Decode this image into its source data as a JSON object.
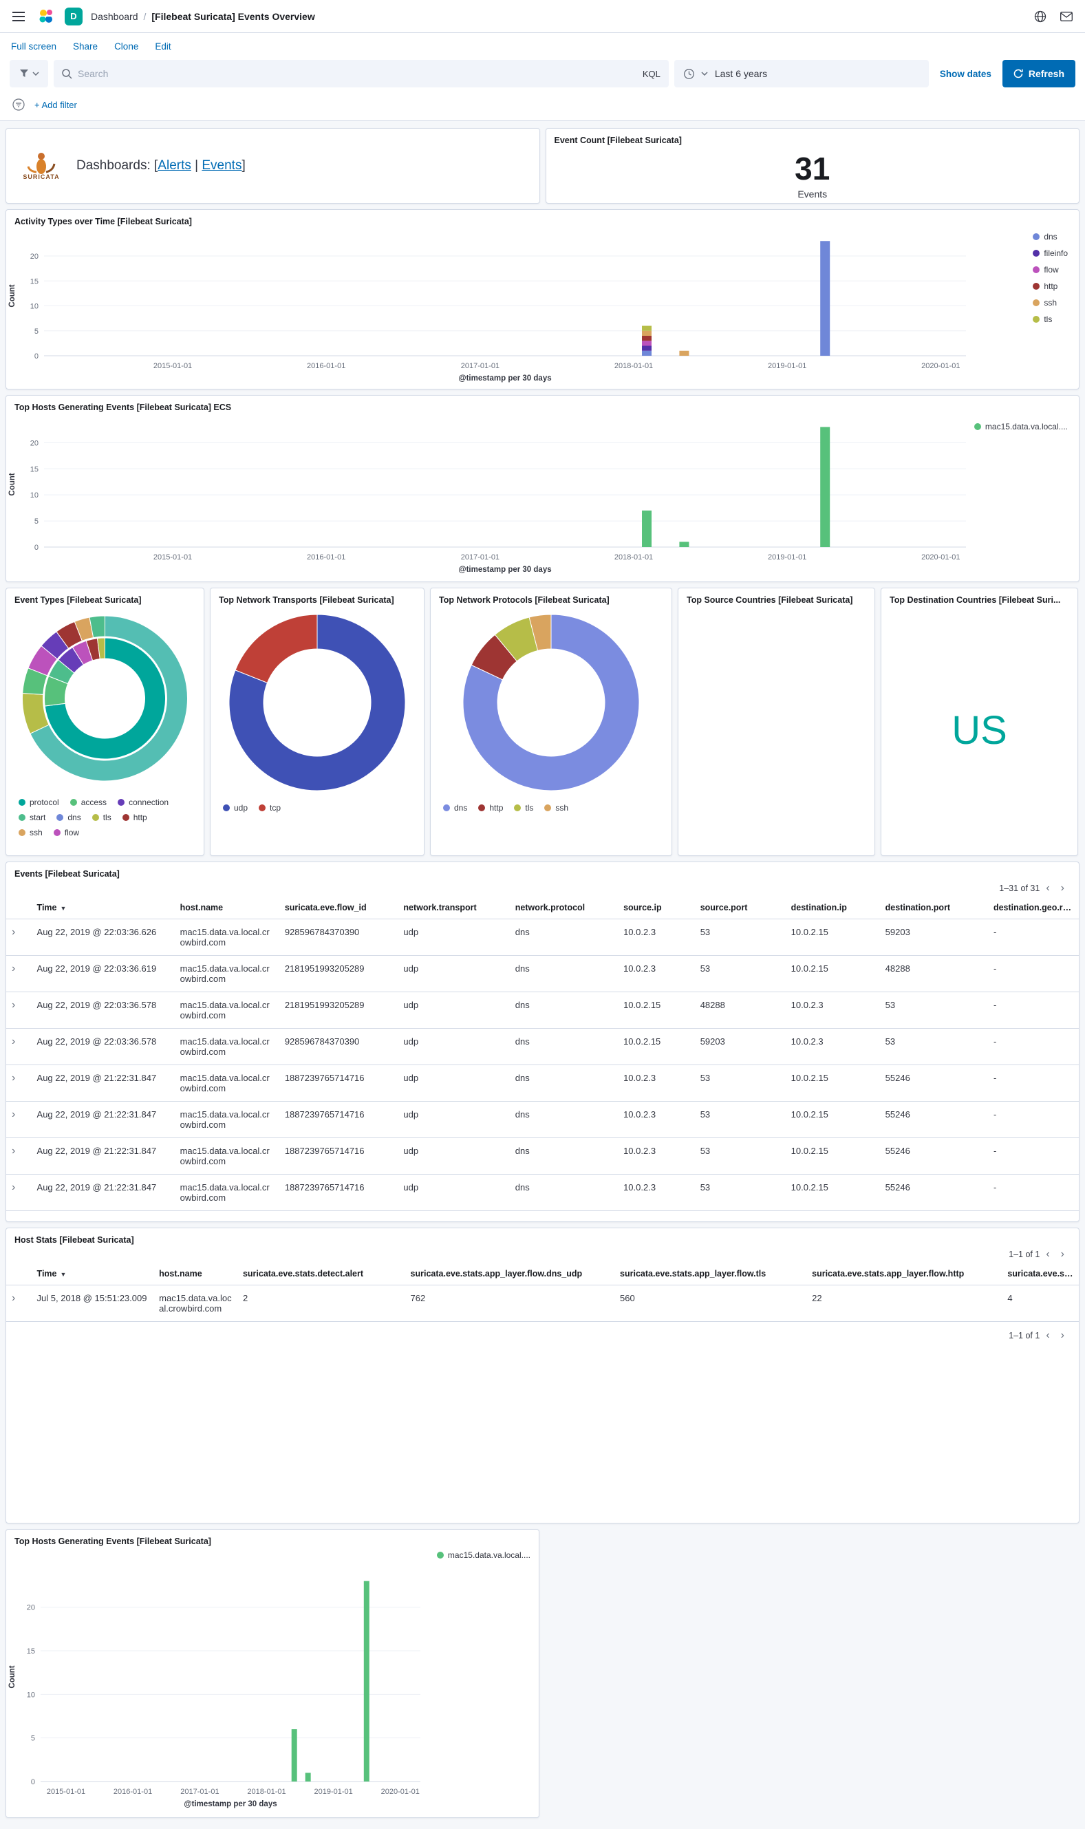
{
  "colors": {
    "primary": "#006bb4",
    "space_badge": "#00a69b",
    "suricata_orange": "#d9822b"
  },
  "icons": [
    "menu-icon",
    "elastic-logo",
    "help-icon",
    "newsfeed-icon",
    "saved-query-icon",
    "caret-down-icon",
    "search-icon",
    "clock-icon",
    "refresh-icon",
    "filter-icon",
    "chevron-left-icon",
    "chevron-right-icon",
    "expand-row-icon",
    "sort-desc-icon"
  ],
  "header": {
    "breadcrumb_section": "Dashboard",
    "breadcrumb_sep": "/",
    "breadcrumb_title": "[Filebeat Suricata] Events Overview",
    "space_initial": "D"
  },
  "actions": {
    "full_screen": "Full screen",
    "share": "Share",
    "clone": "Clone",
    "edit": "Edit"
  },
  "search_bar": {
    "placeholder": "Search",
    "kql": "KQL",
    "time_value": "Last 6 years",
    "show_dates": "Show dates",
    "refresh": "Refresh"
  },
  "filter_bar": {
    "add_filter": "+ Add filter"
  },
  "markdown_panel": {
    "logo_caption": "SURICATA",
    "prefix": "Dashboards: [",
    "alerts_link": "Alerts",
    "divider": " | ",
    "events_link": "Events",
    "suffix": "]"
  },
  "metric_panel": {
    "title": "Event Count [Filebeat Suricata]",
    "value": "31",
    "label": "Events"
  },
  "panel_titles": {
    "src_countries": "Top Source Countries [Filebeat Suricata]"
  },
  "chart_data": [
    {
      "id": "activity",
      "type": "bar",
      "stacked": true,
      "title": "Activity Types over Time [Filebeat Suricata]",
      "xlabel": "@timestamp per 30 days",
      "ylabel": "Count",
      "x_domain": [
        "2014-03-01",
        "2020-03-01"
      ],
      "x_ticks": [
        "2015-01-01",
        "2016-01-01",
        "2017-01-01",
        "2018-01-01",
        "2019-01-01",
        "2020-01-01"
      ],
      "ylim": [
        0,
        24
      ],
      "y_ticks": [
        0,
        5,
        10,
        15,
        20
      ],
      "legend_position": "right",
      "series": [
        {
          "name": "dns",
          "color": "#6f87d8"
        },
        {
          "name": "fileinfo",
          "color": "#5330a8"
        },
        {
          "name": "flow",
          "color": "#bc52bc"
        },
        {
          "name": "http",
          "color": "#9e3533"
        },
        {
          "name": "ssh",
          "color": "#d9a45f"
        },
        {
          "name": "tls",
          "color": "#b6bd48"
        }
      ],
      "bars": [
        {
          "x": "2018-02-01",
          "values": [
            1,
            1,
            1,
            1,
            1,
            1
          ]
        },
        {
          "x": "2018-05-01",
          "values": [
            0,
            0,
            0,
            0,
            1,
            0
          ]
        },
        {
          "x": "2019-04-01",
          "values": [
            23,
            0,
            0,
            0,
            0,
            0
          ]
        }
      ]
    },
    {
      "id": "hosts_ecs",
      "type": "bar",
      "title": "Top Hosts Generating Events [Filebeat Suricata] ECS",
      "xlabel": "@timestamp per 30 days",
      "ylabel": "Count",
      "x_domain": [
        "2014-03-01",
        "2020-03-01"
      ],
      "x_ticks": [
        "2015-01-01",
        "2016-01-01",
        "2017-01-01",
        "2018-01-01",
        "2019-01-01",
        "2020-01-01"
      ],
      "ylim": [
        0,
        24
      ],
      "y_ticks": [
        0,
        5,
        10,
        15,
        20
      ],
      "legend_position": "right",
      "series": [
        {
          "name": "mac15.data.va.local....",
          "color": "#57c17b"
        }
      ],
      "bars": [
        {
          "x": "2018-02-01",
          "values": [
            7
          ]
        },
        {
          "x": "2018-05-01",
          "values": [
            1
          ]
        },
        {
          "x": "2019-04-01",
          "values": [
            23
          ]
        }
      ]
    },
    {
      "id": "event_types",
      "type": "pie",
      "title": "Event Types [Filebeat Suricata]",
      "legend_position": "bottom",
      "rings": [
        {
          "slices": [
            {
              "label": "protocol",
              "value": 73,
              "color": "#00a69b"
            },
            {
              "label": "access",
              "value": 8,
              "color": "#57c17b"
            },
            {
              "label": "start",
              "value": 5,
              "color": "#4dbd8c"
            },
            {
              "label": "connection",
              "value": 5,
              "color": "#663db8"
            },
            {
              "label": "flow",
              "value": 4,
              "color": "#bc52bc"
            },
            {
              "label": "http",
              "value": 3,
              "color": "#9e3533"
            },
            {
              "label": "tls",
              "value": 2,
              "color": "#b6bd48"
            }
          ]
        },
        {
          "slices": [
            {
              "label": "dns",
              "value": 68,
              "color": "#54beb3"
            },
            {
              "label": "tls",
              "value": 8,
              "color": "#b6bd48"
            },
            {
              "label": "access",
              "value": 5,
              "color": "#57c17b"
            },
            {
              "label": "flow",
              "value": 5,
              "color": "#bc52bc"
            },
            {
              "label": "connection",
              "value": 4,
              "color": "#663db8"
            },
            {
              "label": "http",
              "value": 4,
              "color": "#9e3533"
            },
            {
              "label": "ssh",
              "value": 3,
              "color": "#d9a45f"
            },
            {
              "label": "start",
              "value": 3,
              "color": "#4dbd8c"
            }
          ]
        }
      ],
      "legend": [
        {
          "label": "protocol",
          "color": "#00a69b"
        },
        {
          "label": "access",
          "color": "#57c17b"
        },
        {
          "label": "connection",
          "color": "#663db8"
        },
        {
          "label": "start",
          "color": "#4dbd8c"
        },
        {
          "label": "dns",
          "color": "#6f87d8"
        },
        {
          "label": "tls",
          "color": "#b6bd48"
        },
        {
          "label": "http",
          "color": "#9e3533"
        },
        {
          "label": "ssh",
          "color": "#d9a45f"
        },
        {
          "label": "flow",
          "color": "#bc52bc"
        }
      ]
    },
    {
      "id": "transports",
      "type": "pie",
      "title": "Top Network Transports [Filebeat Suricata]",
      "legend_position": "bottom",
      "rings": [
        {
          "slices": [
            {
              "label": "udp",
              "value": 81,
              "color": "#3f51b5"
            },
            {
              "label": "tcp",
              "value": 19,
              "color": "#bf4037"
            }
          ]
        }
      ],
      "legend": [
        {
          "label": "udp",
          "color": "#3f51b5"
        },
        {
          "label": "tcp",
          "color": "#bf4037"
        }
      ]
    },
    {
      "id": "protocols",
      "type": "pie",
      "title": "Top Network Protocols [Filebeat Suricata]",
      "legend_position": "bottom",
      "rings": [
        {
          "slices": [
            {
              "label": "dns",
              "value": 82,
              "color": "#7b8ce0"
            },
            {
              "label": "http",
              "value": 7,
              "color": "#9e3533"
            },
            {
              "label": "tls",
              "value": 7,
              "color": "#b6bd48"
            },
            {
              "label": "ssh",
              "value": 4,
              "color": "#d9a45f"
            }
          ]
        }
      ],
      "legend": [
        {
          "label": "dns",
          "color": "#7b8ce0"
        },
        {
          "label": "http",
          "color": "#9e3533"
        },
        {
          "label": "tls",
          "color": "#b6bd48"
        },
        {
          "label": "ssh",
          "color": "#d9a45f"
        }
      ]
    },
    {
      "id": "dst_countries",
      "type": "tag_cloud",
      "title": "Top Destination Countries [Filebeat Suri...",
      "words": [
        {
          "text": "US",
          "color": "#00a69b",
          "size": 58
        }
      ]
    },
    {
      "id": "hosts_bottom",
      "type": "bar",
      "title": "Top Hosts Generating Events [Filebeat Suricata]",
      "xlabel": "@timestamp per 30 days",
      "ylabel": "Count",
      "x_domain": [
        "2014-08-15",
        "2020-04-20"
      ],
      "x_ticks": [
        "2015-01-01",
        "2016-01-01",
        "2017-01-01",
        "2018-01-01",
        "2019-01-01",
        "2020-01-01"
      ],
      "ylim": [
        0,
        24
      ],
      "y_ticks": [
        0,
        5,
        10,
        15,
        20
      ],
      "legend_position": "top-right",
      "series": [
        {
          "name": "mac15.data.va.local....",
          "color": "#57c17b"
        }
      ],
      "bars": [
        {
          "x": "2018-06-01",
          "values": [
            6
          ]
        },
        {
          "x": "2018-08-15",
          "values": [
            1
          ]
        },
        {
          "x": "2019-07-01",
          "values": [
            23
          ]
        }
      ]
    }
  ],
  "events_table": {
    "title": "Events [Filebeat Suricata]",
    "pagination": "1–31 of 31",
    "columns": [
      {
        "label": "Time",
        "sorted": true
      },
      {
        "label": "host.name"
      },
      {
        "label": "suricata.eve.flow_id"
      },
      {
        "label": "network.transport"
      },
      {
        "label": "network.protocol"
      },
      {
        "label": "source.ip"
      },
      {
        "label": "source.port"
      },
      {
        "label": "destination.ip"
      },
      {
        "label": "destination.port"
      },
      {
        "label": "destination.geo.region_na..."
      }
    ],
    "rows": [
      [
        "Aug 22, 2019 @ 22:03:36.626",
        "mac15.data.va.local.crowbird.com",
        "928596784370390",
        "udp",
        "dns",
        "10.0.2.3",
        "53",
        "10.0.2.15",
        "59203",
        "-"
      ],
      [
        "Aug 22, 2019 @ 22:03:36.619",
        "mac15.data.va.local.crowbird.com",
        "2181951993205289",
        "udp",
        "dns",
        "10.0.2.3",
        "53",
        "10.0.2.15",
        "48288",
        "-"
      ],
      [
        "Aug 22, 2019 @ 22:03:36.578",
        "mac15.data.va.local.crowbird.com",
        "2181951993205289",
        "udp",
        "dns",
        "10.0.2.15",
        "48288",
        "10.0.2.3",
        "53",
        "-"
      ],
      [
        "Aug 22, 2019 @ 22:03:36.578",
        "mac15.data.va.local.crowbird.com",
        "928596784370390",
        "udp",
        "dns",
        "10.0.2.15",
        "59203",
        "10.0.2.3",
        "53",
        "-"
      ],
      [
        "Aug 22, 2019 @ 21:22:31.847",
        "mac15.data.va.local.crowbird.com",
        "1887239765714716",
        "udp",
        "dns",
        "10.0.2.3",
        "53",
        "10.0.2.15",
        "55246",
        "-"
      ],
      [
        "Aug 22, 2019 @ 21:22:31.847",
        "mac15.data.va.local.crowbird.com",
        "1887239765714716",
        "udp",
        "dns",
        "10.0.2.3",
        "53",
        "10.0.2.15",
        "55246",
        "-"
      ],
      [
        "Aug 22, 2019 @ 21:22:31.847",
        "mac15.data.va.local.crowbird.com",
        "1887239765714716",
        "udp",
        "dns",
        "10.0.2.3",
        "53",
        "10.0.2.15",
        "55246",
        "-"
      ],
      [
        "Aug 22, 2019 @ 21:22:31.847",
        "mac15.data.va.local.crowbird.com",
        "1887239765714716",
        "udp",
        "dns",
        "10.0.2.3",
        "53",
        "10.0.2.15",
        "55246",
        "-"
      ]
    ]
  },
  "host_stats_table": {
    "title": "Host Stats [Filebeat Suricata]",
    "pagination": "1–1 of 1",
    "columns": [
      {
        "label": "Time",
        "sorted": true
      },
      {
        "label": "host.name"
      },
      {
        "label": "suricata.eve.stats.detect.alert"
      },
      {
        "label": "suricata.eve.stats.app_layer.flow.dns_udp"
      },
      {
        "label": "suricata.eve.stats.app_layer.flow.tls"
      },
      {
        "label": "suricata.eve.stats.app_layer.flow.http"
      },
      {
        "label": "suricata.eve.stats.app_l..."
      }
    ],
    "rows": [
      [
        "Jul 5, 2018 @ 15:51:23.009",
        "mac15.data.va.local.crowbird.com",
        "2",
        "762",
        "560",
        "22",
        "4"
      ]
    ]
  }
}
